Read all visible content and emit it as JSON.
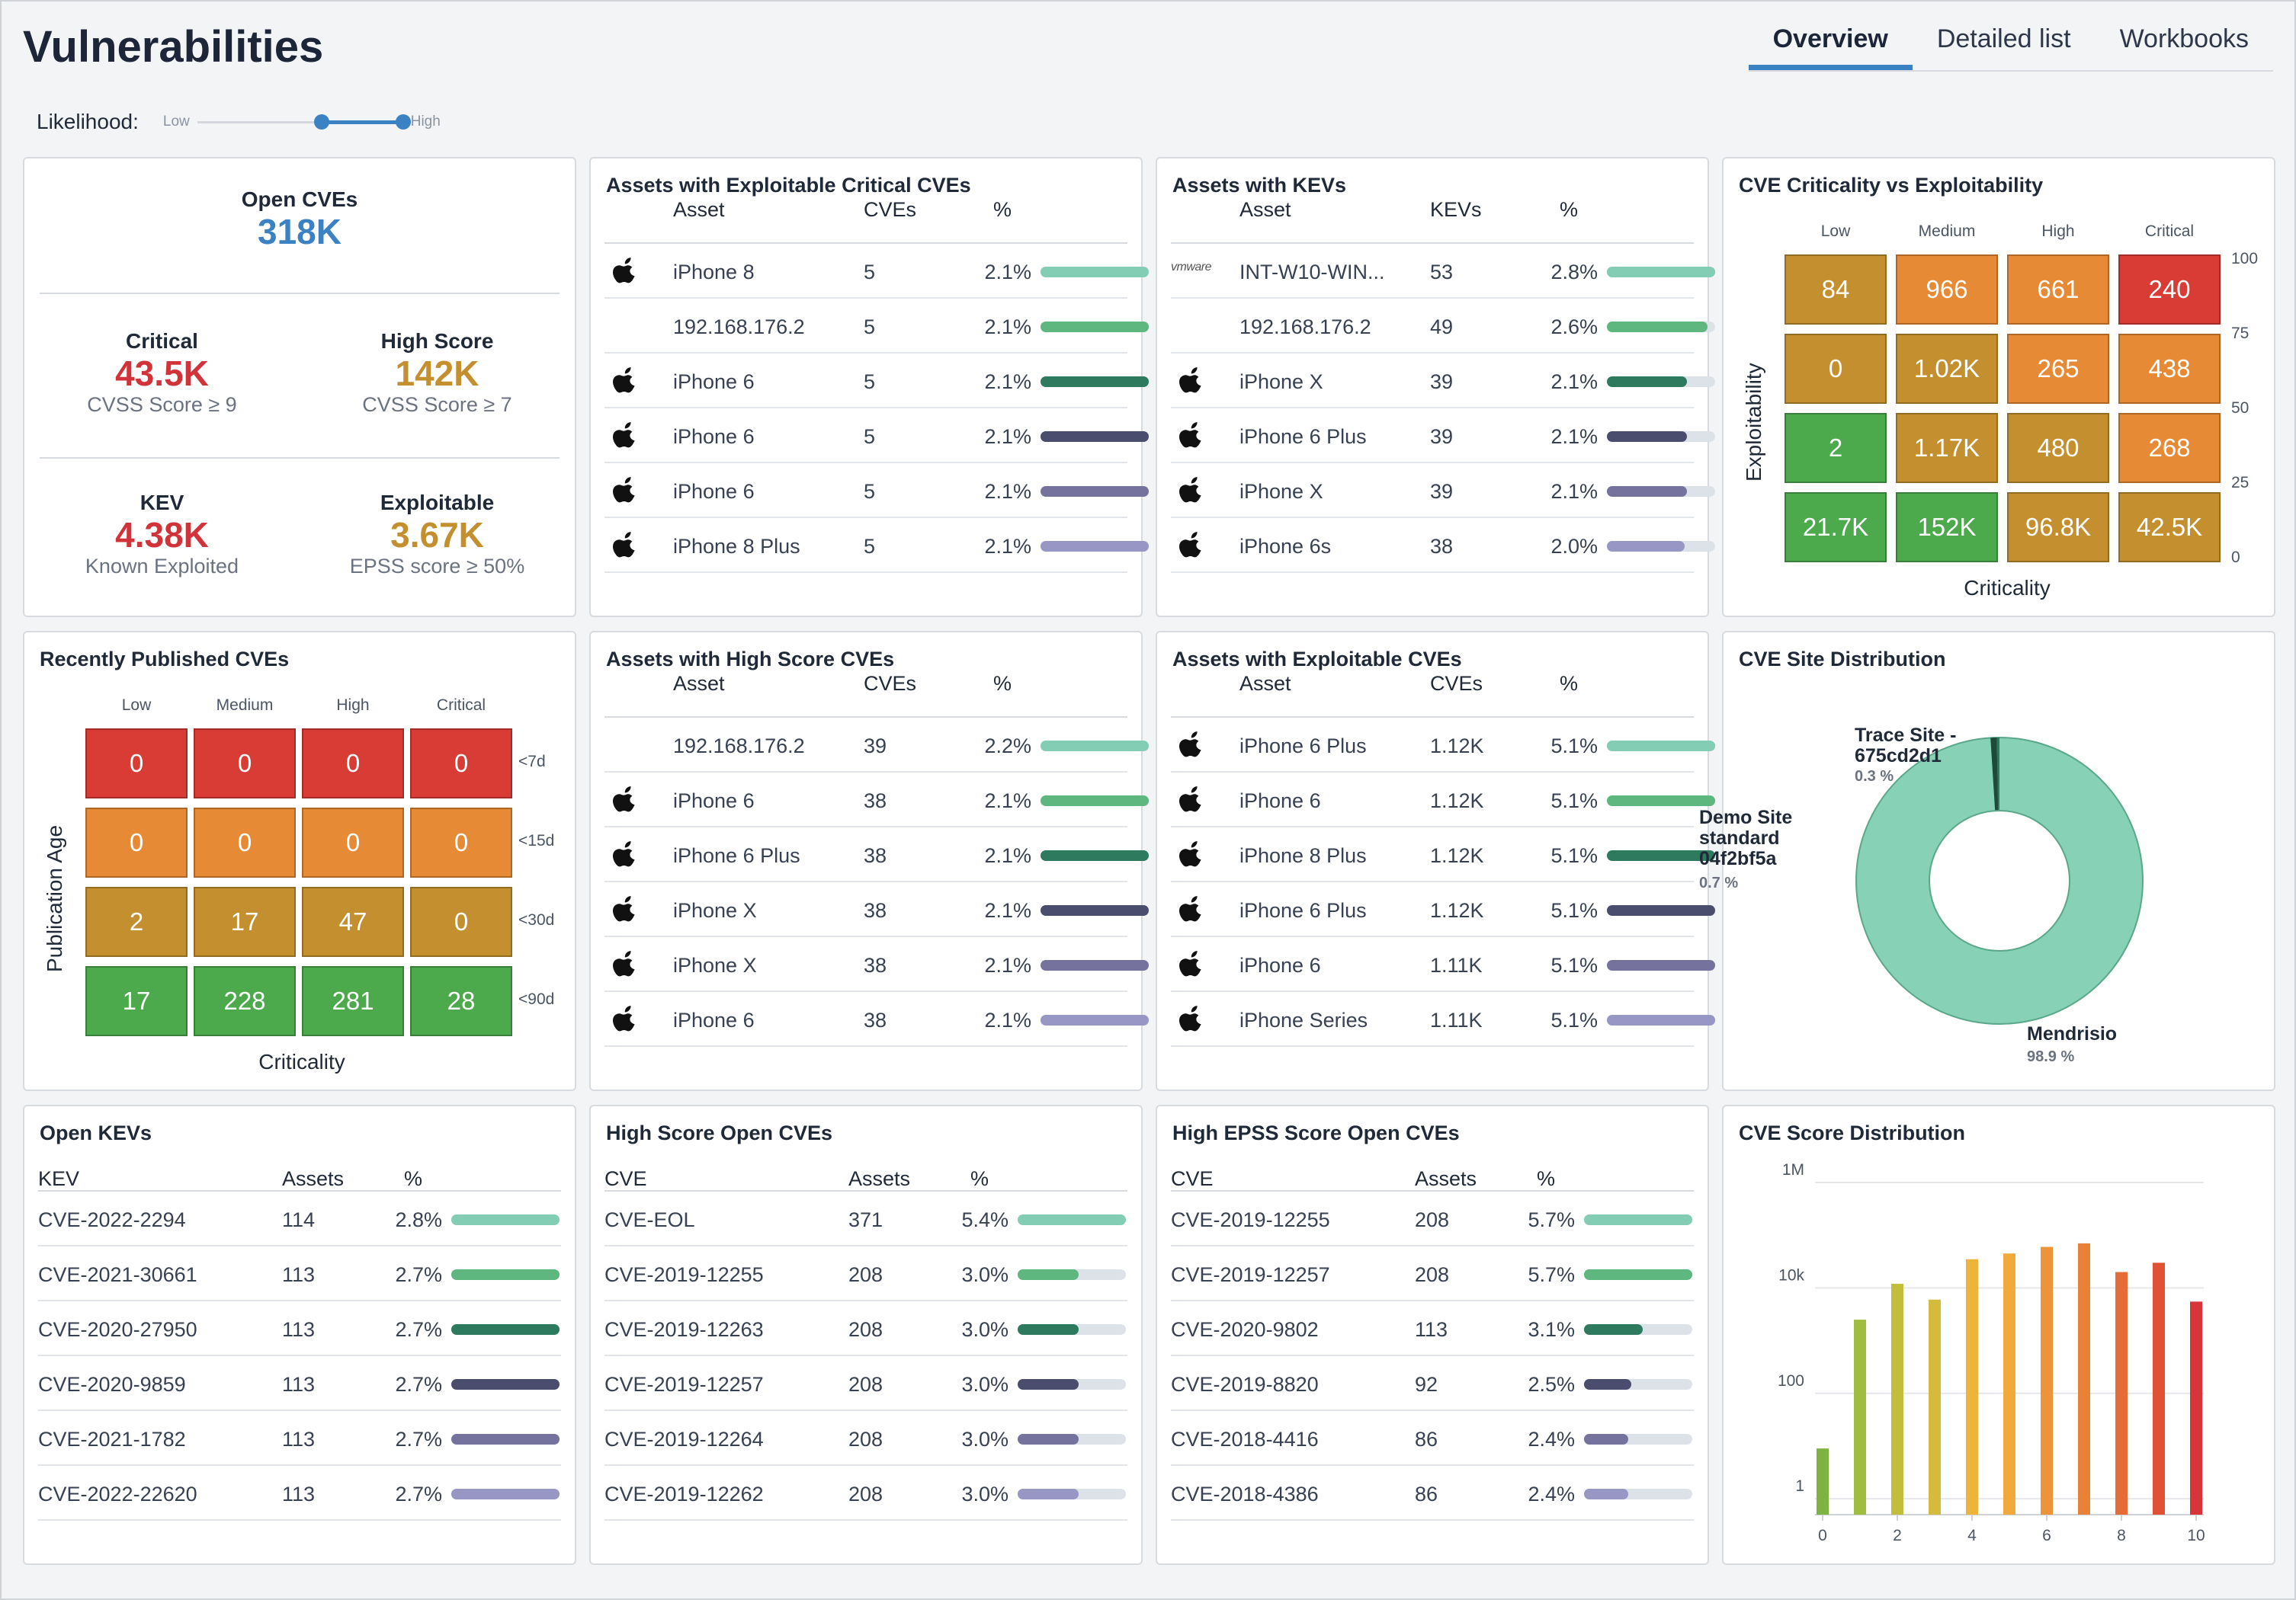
{
  "header": {
    "title": "Vulnerabilities",
    "tabs": [
      {
        "label": "Overview",
        "active": true
      },
      {
        "label": "Detailed list",
        "active": false
      },
      {
        "label": "Workbooks",
        "active": false
      }
    ],
    "likelihood": {
      "label": "Likelihood:",
      "low": "Low",
      "high": "High",
      "range": [
        0.6,
        1.0
      ]
    }
  },
  "colors": {
    "critical": "#d93b35",
    "high": "#e78a35",
    "medium": "#c4902f",
    "low": "#4caa4c",
    "accent": "#3b82c4",
    "bar_palette": [
      "#82cdb4",
      "#5db77e",
      "#2d7a5e",
      "#4a4d6e",
      "#75739e",
      "#9796c4"
    ]
  },
  "summary": {
    "open": {
      "label": "Open CVEs",
      "value": "318K"
    },
    "critical": {
      "label": "Critical",
      "value": "43.5K",
      "sub": "CVSS Score ≥ 9"
    },
    "high_score": {
      "label": "High Score",
      "value": "142K",
      "sub": "CVSS Score ≥ 7"
    },
    "kev": {
      "label": "KEV",
      "value": "4.38K",
      "sub": "Known Exploited"
    },
    "exploitable": {
      "label": "Exploitable",
      "value": "3.67K",
      "sub": "EPSS score ≥ 50%"
    }
  },
  "exploitable_critical": {
    "title": "Assets with Exploitable Critical CVEs",
    "columns": [
      "Asset",
      "CVEs",
      "%"
    ],
    "rows": [
      {
        "icon": "apple-icon",
        "asset": "iPhone 8",
        "count": "5",
        "pct": "2.1%",
        "fill": 1.0
      },
      {
        "icon": "none",
        "asset": "192.168.176.2",
        "count": "5",
        "pct": "2.1%",
        "fill": 1.0
      },
      {
        "icon": "apple-icon",
        "asset": "iPhone 6",
        "count": "5",
        "pct": "2.1%",
        "fill": 1.0
      },
      {
        "icon": "apple-icon",
        "asset": "iPhone 6",
        "count": "5",
        "pct": "2.1%",
        "fill": 1.0
      },
      {
        "icon": "apple-icon",
        "asset": "iPhone 6",
        "count": "5",
        "pct": "2.1%",
        "fill": 1.0
      },
      {
        "icon": "apple-icon",
        "asset": "iPhone 8 Plus",
        "count": "5",
        "pct": "2.1%",
        "fill": 1.0
      }
    ]
  },
  "kevs_assets": {
    "title": "Assets with KEVs",
    "columns": [
      "Asset",
      "KEVs",
      "%"
    ],
    "rows": [
      {
        "icon": "vmware-icon",
        "asset": "INT-W10-WIN...",
        "count": "53",
        "pct": "2.8%",
        "fill": 1.0
      },
      {
        "icon": "none",
        "asset": "192.168.176.2",
        "count": "49",
        "pct": "2.6%",
        "fill": 0.93
      },
      {
        "icon": "apple-icon",
        "asset": "iPhone X",
        "count": "39",
        "pct": "2.1%",
        "fill": 0.74
      },
      {
        "icon": "apple-icon",
        "asset": "iPhone 6 Plus",
        "count": "39",
        "pct": "2.1%",
        "fill": 0.74
      },
      {
        "icon": "apple-icon",
        "asset": "iPhone X",
        "count": "39",
        "pct": "2.1%",
        "fill": 0.74
      },
      {
        "icon": "apple-icon",
        "asset": "iPhone 6s",
        "count": "38",
        "pct": "2.0%",
        "fill": 0.72
      }
    ],
    "vmware_text": "vmware"
  },
  "criticality_matrix": {
    "title": "CVE Criticality vs Exploitability",
    "columns": [
      "Low",
      "Medium",
      "High",
      "Critical"
    ],
    "y_ticks": [
      "100",
      "75",
      "50",
      "25",
      "0"
    ],
    "xlabel": "Criticality",
    "ylabel": "Exploitability",
    "rows": [
      [
        {
          "v": "84",
          "c": "medium"
        },
        {
          "v": "966",
          "c": "high"
        },
        {
          "v": "661",
          "c": "high"
        },
        {
          "v": "240",
          "c": "critical"
        }
      ],
      [
        {
          "v": "0",
          "c": "medium"
        },
        {
          "v": "1.02K",
          "c": "medium"
        },
        {
          "v": "265",
          "c": "high"
        },
        {
          "v": "438",
          "c": "high"
        }
      ],
      [
        {
          "v": "2",
          "c": "low"
        },
        {
          "v": "1.17K",
          "c": "medium"
        },
        {
          "v": "480",
          "c": "medium"
        },
        {
          "v": "268",
          "c": "high"
        }
      ],
      [
        {
          "v": "21.7K",
          "c": "low"
        },
        {
          "v": "152K",
          "c": "low"
        },
        {
          "v": "96.8K",
          "c": "medium"
        },
        {
          "v": "42.5K",
          "c": "medium"
        }
      ]
    ]
  },
  "recent_cves": {
    "title": "Recently Published CVEs",
    "columns": [
      "Low",
      "Medium",
      "High",
      "Critical"
    ],
    "row_labels": [
      "<7d",
      "<15d",
      "<30d",
      "<90d"
    ],
    "xlabel": "Criticality",
    "ylabel": "Publication Age",
    "rows": [
      [
        {
          "v": "0",
          "c": "critical"
        },
        {
          "v": "0",
          "c": "critical"
        },
        {
          "v": "0",
          "c": "critical"
        },
        {
          "v": "0",
          "c": "critical"
        }
      ],
      [
        {
          "v": "0",
          "c": "high"
        },
        {
          "v": "0",
          "c": "high"
        },
        {
          "v": "0",
          "c": "high"
        },
        {
          "v": "0",
          "c": "high"
        }
      ],
      [
        {
          "v": "2",
          "c": "medium"
        },
        {
          "v": "17",
          "c": "medium"
        },
        {
          "v": "47",
          "c": "medium"
        },
        {
          "v": "0",
          "c": "medium"
        }
      ],
      [
        {
          "v": "17",
          "c": "low"
        },
        {
          "v": "228",
          "c": "low"
        },
        {
          "v": "281",
          "c": "low"
        },
        {
          "v": "28",
          "c": "low"
        }
      ]
    ]
  },
  "high_score_assets": {
    "title": "Assets with High Score CVEs",
    "columns": [
      "Asset",
      "CVEs",
      "%"
    ],
    "rows": [
      {
        "icon": "none",
        "asset": "192.168.176.2",
        "count": "39",
        "pct": "2.2%",
        "fill": 1.0
      },
      {
        "icon": "apple-icon",
        "asset": "iPhone 6",
        "count": "38",
        "pct": "2.1%",
        "fill": 1.0
      },
      {
        "icon": "apple-icon",
        "asset": "iPhone 6 Plus",
        "count": "38",
        "pct": "2.1%",
        "fill": 1.0
      },
      {
        "icon": "apple-icon",
        "asset": "iPhone X",
        "count": "38",
        "pct": "2.1%",
        "fill": 1.0
      },
      {
        "icon": "apple-icon",
        "asset": "iPhone X",
        "count": "38",
        "pct": "2.1%",
        "fill": 1.0
      },
      {
        "icon": "apple-icon",
        "asset": "iPhone 6",
        "count": "38",
        "pct": "2.1%",
        "fill": 1.0
      }
    ]
  },
  "exploitable_assets": {
    "title": "Assets with Exploitable CVEs",
    "columns": [
      "Asset",
      "CVEs",
      "%"
    ],
    "rows": [
      {
        "icon": "apple-icon",
        "asset": "iPhone 6 Plus",
        "count": "1.12K",
        "pct": "5.1%",
        "fill": 1.0
      },
      {
        "icon": "apple-icon",
        "asset": "iPhone 6",
        "count": "1.12K",
        "pct": "5.1%",
        "fill": 1.0
      },
      {
        "icon": "apple-icon",
        "asset": "iPhone 8 Plus",
        "count": "1.12K",
        "pct": "5.1%",
        "fill": 1.0
      },
      {
        "icon": "apple-icon",
        "asset": "iPhone 6 Plus",
        "count": "1.12K",
        "pct": "5.1%",
        "fill": 1.0
      },
      {
        "icon": "apple-icon",
        "asset": "iPhone 6",
        "count": "1.11K",
        "pct": "5.1%",
        "fill": 1.0
      },
      {
        "icon": "apple-icon",
        "asset": "iPhone Series",
        "count": "1.11K",
        "pct": "5.1%",
        "fill": 1.0
      }
    ]
  },
  "site_distribution": {
    "title": "CVE Site Distribution",
    "slices": [
      {
        "name": "Mendrisio",
        "pct": "98.9 %",
        "value": 98.9,
        "color": "#87d1b6"
      },
      {
        "name": "Trace Site - 675cd2d1",
        "pct": "0.3 %",
        "value": 0.3,
        "color": "#2d7a5e"
      },
      {
        "name": "Demo Site standard 04f2bf5a",
        "pct": "0.7 %",
        "value": 0.7,
        "color": "#1f4a3a"
      }
    ],
    "label_lines": {
      "trace": [
        "Trace Site -",
        "675cd2d1"
      ],
      "demo": [
        "Demo Site",
        "standard",
        "04f2bf5a"
      ],
      "demo_pct": "0.7 %",
      "trace_pct": "0.3 %"
    }
  },
  "open_kevs": {
    "title": "Open KEVs",
    "columns": [
      "KEV",
      "Assets",
      "%"
    ],
    "rows": [
      {
        "name": "CVE-2022-2294",
        "count": "114",
        "pct": "2.8%",
        "fill": 1.0
      },
      {
        "name": "CVE-2021-30661",
        "count": "113",
        "pct": "2.7%",
        "fill": 1.0
      },
      {
        "name": "CVE-2020-27950",
        "count": "113",
        "pct": "2.7%",
        "fill": 1.0
      },
      {
        "name": "CVE-2020-9859",
        "count": "113",
        "pct": "2.7%",
        "fill": 1.0
      },
      {
        "name": "CVE-2021-1782",
        "count": "113",
        "pct": "2.7%",
        "fill": 1.0
      },
      {
        "name": "CVE-2022-22620",
        "count": "113",
        "pct": "2.7%",
        "fill": 1.0
      }
    ]
  },
  "high_score_open": {
    "title": "High Score Open CVEs",
    "columns": [
      "CVE",
      "Assets",
      "%"
    ],
    "rows": [
      {
        "name": "CVE-EOL",
        "count": "371",
        "pct": "5.4%",
        "fill": 1.0
      },
      {
        "name": "CVE-2019-12255",
        "count": "208",
        "pct": "3.0%",
        "fill": 0.56
      },
      {
        "name": "CVE-2019-12263",
        "count": "208",
        "pct": "3.0%",
        "fill": 0.56
      },
      {
        "name": "CVE-2019-12257",
        "count": "208",
        "pct": "3.0%",
        "fill": 0.56
      },
      {
        "name": "CVE-2019-12264",
        "count": "208",
        "pct": "3.0%",
        "fill": 0.56
      },
      {
        "name": "CVE-2019-12262",
        "count": "208",
        "pct": "3.0%",
        "fill": 0.56
      }
    ]
  },
  "epss_open": {
    "title": "High EPSS Score Open CVEs",
    "columns": [
      "CVE",
      "Assets",
      "%"
    ],
    "rows": [
      {
        "name": "CVE-2019-12255",
        "count": "208",
        "pct": "5.7%",
        "fill": 1.0
      },
      {
        "name": "CVE-2019-12257",
        "count": "208",
        "pct": "5.7%",
        "fill": 1.0
      },
      {
        "name": "CVE-2020-9802",
        "count": "113",
        "pct": "3.1%",
        "fill": 0.54
      },
      {
        "name": "CVE-2019-8820",
        "count": "92",
        "pct": "2.5%",
        "fill": 0.44
      },
      {
        "name": "CVE-2018-4416",
        "count": "86",
        "pct": "2.4%",
        "fill": 0.41
      },
      {
        "name": "CVE-2018-4386",
        "count": "86",
        "pct": "2.4%",
        "fill": 0.41
      }
    ]
  },
  "chart_data": {
    "type": "bar",
    "title": "CVE Score Distribution",
    "xlabel": "",
    "ylabel": "",
    "scale": "log",
    "ylim": [
      0.5,
      1000000
    ],
    "y_ticks": [
      {
        "label": "1M",
        "value": 1000000
      },
      {
        "label": "10k",
        "value": 10000
      },
      {
        "label": "100",
        "value": 100
      },
      {
        "label": "1",
        "value": 1
      }
    ],
    "x_ticks": [
      "0",
      "2",
      "4",
      "6",
      "8",
      "10"
    ],
    "x_range": [
      0,
      10
    ],
    "x": [
      0,
      1,
      2,
      3,
      4,
      5,
      6,
      7,
      8,
      9,
      10
    ],
    "values": [
      9,
      2500,
      12000,
      6000,
      35000,
      45000,
      60000,
      70000,
      20000,
      30000,
      5500
    ],
    "colors": [
      "#7db341",
      "#a1bd3f",
      "#c2be3b",
      "#d4bb3d",
      "#eeb33b",
      "#f0a93a",
      "#ed943a",
      "#e98236",
      "#e56c35",
      "#df5334",
      "#d8343a"
    ]
  }
}
